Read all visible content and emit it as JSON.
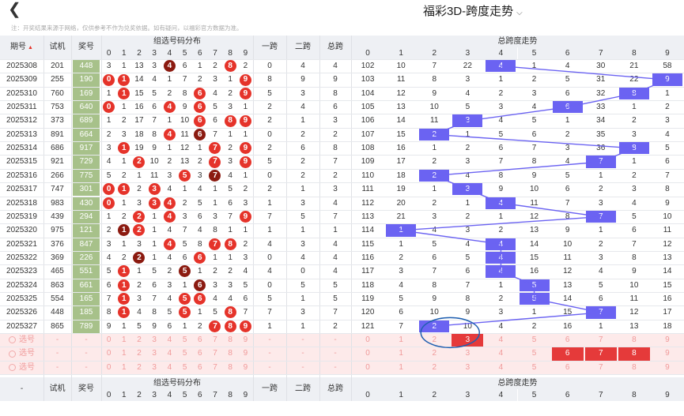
{
  "header": {
    "back_icon": "back-chevron-icon",
    "title": "福彩3D-跨度走势",
    "title_dropdown_icon": "chevron-down-icon"
  },
  "notice": "注：开奖结果来源于网络，仅供参考不作为兑奖依据。如有疑问，以福彩官方数据为准。",
  "columns": {
    "period": "期号",
    "trial": "试机",
    "draw": "奖号",
    "group_dist": "组选号码分布",
    "span1": "一跨",
    "span2": "二跨",
    "total_span": "总跨",
    "trend": "总跨度走势",
    "sort_icon": "sort-icon",
    "digits": [
      "0",
      "1",
      "2",
      "3",
      "4",
      "5",
      "6",
      "7",
      "8",
      "9"
    ]
  },
  "rows": [
    {
      "period": "2025308",
      "trial": "201",
      "draw": "448",
      "dist": [
        "3",
        "1",
        "13",
        "3",
        "4",
        "6",
        "1",
        "2",
        "8",
        "2"
      ],
      "balls": [
        {
          "i": 4,
          "c": "d"
        },
        {
          "i": 8,
          "c": "r"
        }
      ],
      "span1": "0",
      "span2": "4",
      "total": "4",
      "trend": [
        "102",
        "10",
        "7",
        "22",
        "4",
        "1",
        "4",
        "30",
        "21",
        "58"
      ],
      "hit": 4
    },
    {
      "period": "2025309",
      "trial": "255",
      "draw": "190",
      "dist": [
        "0",
        "1",
        "14",
        "4",
        "1",
        "7",
        "2",
        "3",
        "1",
        "9"
      ],
      "balls": [
        {
          "i": 0,
          "c": "r"
        },
        {
          "i": 1,
          "c": "r"
        },
        {
          "i": 9,
          "c": "r"
        }
      ],
      "span1": "8",
      "span2": "9",
      "total": "9",
      "trend": [
        "103",
        "11",
        "8",
        "3",
        "1",
        "2",
        "5",
        "31",
        "22",
        "9"
      ],
      "hit": 9
    },
    {
      "period": "2025310",
      "trial": "760",
      "draw": "169",
      "dist": [
        "1",
        "1",
        "15",
        "5",
        "2",
        "8",
        "6",
        "4",
        "2",
        "9"
      ],
      "balls": [
        {
          "i": 1,
          "c": "r"
        },
        {
          "i": 6,
          "c": "r"
        },
        {
          "i": 9,
          "c": "r"
        }
      ],
      "span1": "5",
      "span2": "3",
      "total": "8",
      "trend": [
        "104",
        "12",
        "9",
        "4",
        "2",
        "3",
        "6",
        "32",
        "8",
        "1"
      ],
      "hit": 8
    },
    {
      "period": "2025311",
      "trial": "753",
      "draw": "640",
      "dist": [
        "0",
        "1",
        "16",
        "6",
        "4",
        "9",
        "6",
        "5",
        "3",
        "1"
      ],
      "balls": [
        {
          "i": 0,
          "c": "r"
        },
        {
          "i": 4,
          "c": "r"
        },
        {
          "i": 6,
          "c": "r"
        }
      ],
      "span1": "2",
      "span2": "4",
      "total": "6",
      "trend": [
        "105",
        "13",
        "10",
        "5",
        "3",
        "4",
        "6",
        "33",
        "1",
        "2"
      ],
      "hit": 6
    },
    {
      "period": "2025312",
      "trial": "373",
      "draw": "689",
      "dist": [
        "1",
        "2",
        "17",
        "7",
        "1",
        "10",
        "6",
        "6",
        "8",
        "9"
      ],
      "balls": [
        {
          "i": 6,
          "c": "r"
        },
        {
          "i": 8,
          "c": "r"
        },
        {
          "i": 9,
          "c": "r"
        }
      ],
      "span1": "2",
      "span2": "1",
      "total": "3",
      "trend": [
        "106",
        "14",
        "11",
        "3",
        "4",
        "5",
        "1",
        "34",
        "2",
        "3"
      ],
      "hit": 3
    },
    {
      "period": "2025313",
      "trial": "891",
      "draw": "664",
      "dist": [
        "2",
        "3",
        "18",
        "8",
        "4",
        "11",
        "6",
        "7",
        "1",
        "1"
      ],
      "balls": [
        {
          "i": 4,
          "c": "r"
        },
        {
          "i": 6,
          "c": "d"
        }
      ],
      "span1": "0",
      "span2": "2",
      "total": "2",
      "trend": [
        "107",
        "15",
        "2",
        "1",
        "5",
        "6",
        "2",
        "35",
        "3",
        "4"
      ],
      "hit": 2
    },
    {
      "period": "2025314",
      "trial": "686",
      "draw": "917",
      "dist": [
        "3",
        "1",
        "19",
        "9",
        "1",
        "12",
        "1",
        "7",
        "2",
        "9"
      ],
      "balls": [
        {
          "i": 1,
          "c": "r"
        },
        {
          "i": 7,
          "c": "r"
        },
        {
          "i": 9,
          "c": "r"
        }
      ],
      "span1": "2",
      "span2": "6",
      "total": "8",
      "trend": [
        "108",
        "16",
        "1",
        "2",
        "6",
        "7",
        "3",
        "36",
        "8",
        "5"
      ],
      "hit": 8
    },
    {
      "period": "2025315",
      "trial": "921",
      "draw": "729",
      "dist": [
        "4",
        "1",
        "2",
        "10",
        "2",
        "13",
        "2",
        "7",
        "3",
        "9"
      ],
      "balls": [
        {
          "i": 2,
          "c": "r"
        },
        {
          "i": 7,
          "c": "r"
        },
        {
          "i": 9,
          "c": "r"
        }
      ],
      "span1": "5",
      "span2": "2",
      "total": "7",
      "trend": [
        "109",
        "17",
        "2",
        "3",
        "7",
        "8",
        "4",
        "7",
        "1",
        "6"
      ],
      "hit": 7
    },
    {
      "period": "2025316",
      "trial": "266",
      "draw": "775",
      "dist": [
        "5",
        "2",
        "1",
        "11",
        "3",
        "5",
        "3",
        "7",
        "4",
        "1"
      ],
      "balls": [
        {
          "i": 5,
          "c": "r"
        },
        {
          "i": 7,
          "c": "d"
        }
      ],
      "span1": "0",
      "span2": "2",
      "total": "2",
      "trend": [
        "110",
        "18",
        "2",
        "4",
        "8",
        "9",
        "5",
        "1",
        "2",
        "7"
      ],
      "hit": 2
    },
    {
      "period": "2025317",
      "trial": "747",
      "draw": "301",
      "dist": [
        "0",
        "1",
        "2",
        "3",
        "4",
        "1",
        "4",
        "1",
        "5",
        "2"
      ],
      "balls": [
        {
          "i": 0,
          "c": "r"
        },
        {
          "i": 1,
          "c": "r"
        },
        {
          "i": 3,
          "c": "r"
        }
      ],
      "span1": "2",
      "span2": "1",
      "total": "3",
      "trend": [
        "111",
        "19",
        "1",
        "3",
        "9",
        "10",
        "6",
        "2",
        "3",
        "8"
      ],
      "hit": 3
    },
    {
      "period": "2025318",
      "trial": "983",
      "draw": "430",
      "dist": [
        "0",
        "1",
        "3",
        "3",
        "4",
        "2",
        "5",
        "1",
        "6",
        "3"
      ],
      "balls": [
        {
          "i": 0,
          "c": "r"
        },
        {
          "i": 3,
          "c": "r"
        },
        {
          "i": 4,
          "c": "r"
        }
      ],
      "span1": "1",
      "span2": "3",
      "total": "4",
      "trend": [
        "112",
        "20",
        "2",
        "1",
        "4",
        "11",
        "7",
        "3",
        "4",
        "9"
      ],
      "hit": 4
    },
    {
      "period": "2025319",
      "trial": "439",
      "draw": "294",
      "dist": [
        "1",
        "2",
        "2",
        "1",
        "4",
        "3",
        "6",
        "3",
        "7",
        "9"
      ],
      "balls": [
        {
          "i": 2,
          "c": "r"
        },
        {
          "i": 4,
          "c": "r"
        },
        {
          "i": 9,
          "c": "r"
        }
      ],
      "span1": "7",
      "span2": "5",
      "total": "7",
      "trend": [
        "113",
        "21",
        "3",
        "2",
        "1",
        "12",
        "8",
        "7",
        "5",
        "10"
      ],
      "hit": 7
    },
    {
      "period": "2025320",
      "trial": "975",
      "draw": "121",
      "dist": [
        "2",
        "1",
        "2",
        "1",
        "4",
        "7",
        "4",
        "8",
        "1",
        "1"
      ],
      "balls": [
        {
          "i": 1,
          "c": "d"
        },
        {
          "i": 2,
          "c": "r"
        }
      ],
      "span1": "1",
      "span2": "1",
      "total": "1",
      "trend": [
        "114",
        "1",
        "4",
        "3",
        "2",
        "13",
        "9",
        "1",
        "6",
        "11"
      ],
      "hit": 1
    },
    {
      "period": "2025321",
      "trial": "376",
      "draw": "847",
      "dist": [
        "3",
        "1",
        "3",
        "1",
        "4",
        "5",
        "8",
        "7",
        "8",
        "2"
      ],
      "balls": [
        {
          "i": 4,
          "c": "r"
        },
        {
          "i": 7,
          "c": "r"
        },
        {
          "i": 8,
          "c": "r"
        }
      ],
      "span1": "4",
      "span2": "3",
      "total": "4",
      "trend": [
        "115",
        "1",
        "5",
        "4",
        "4",
        "14",
        "10",
        "2",
        "7",
        "12"
      ],
      "hit": 4
    },
    {
      "period": "2025322",
      "trial": "369",
      "draw": "226",
      "dist": [
        "4",
        "2",
        "2",
        "1",
        "4",
        "6",
        "6",
        "1",
        "1",
        "3"
      ],
      "balls": [
        {
          "i": 2,
          "c": "d"
        },
        {
          "i": 6,
          "c": "r"
        }
      ],
      "span1": "0",
      "span2": "4",
      "total": "4",
      "trend": [
        "116",
        "2",
        "6",
        "5",
        "4",
        "15",
        "11",
        "3",
        "8",
        "13"
      ],
      "hit": 4
    },
    {
      "period": "2025323",
      "trial": "465",
      "draw": "551",
      "dist": [
        "5",
        "1",
        "1",
        "5",
        "2",
        "5",
        "1",
        "2",
        "2",
        "4"
      ],
      "balls": [
        {
          "i": 1,
          "c": "r"
        },
        {
          "i": 5,
          "c": "d"
        }
      ],
      "span1": "4",
      "span2": "0",
      "total": "4",
      "trend": [
        "117",
        "3",
        "7",
        "6",
        "4",
        "16",
        "12",
        "4",
        "9",
        "14"
      ],
      "hit": 4
    },
    {
      "period": "2025324",
      "trial": "863",
      "draw": "661",
      "dist": [
        "6",
        "1",
        "2",
        "6",
        "3",
        "1",
        "6",
        "3",
        "3",
        "5"
      ],
      "balls": [
        {
          "i": 1,
          "c": "r"
        },
        {
          "i": 6,
          "c": "d"
        }
      ],
      "span1": "0",
      "span2": "5",
      "total": "5",
      "trend": [
        "118",
        "4",
        "8",
        "7",
        "1",
        "5",
        "13",
        "5",
        "10",
        "15"
      ],
      "hit": 5
    },
    {
      "period": "2025325",
      "trial": "554",
      "draw": "165",
      "dist": [
        "7",
        "1",
        "3",
        "7",
        "4",
        "5",
        "6",
        "4",
        "4",
        "6"
      ],
      "balls": [
        {
          "i": 1,
          "c": "r"
        },
        {
          "i": 5,
          "c": "r"
        },
        {
          "i": 6,
          "c": "r"
        }
      ],
      "span1": "5",
      "span2": "1",
      "total": "5",
      "trend": [
        "119",
        "5",
        "9",
        "8",
        "2",
        "5",
        "14",
        "6",
        "11",
        "16"
      ],
      "hit": 5
    },
    {
      "period": "2025326",
      "trial": "448",
      "draw": "185",
      "dist": [
        "8",
        "1",
        "4",
        "8",
        "5",
        "5",
        "1",
        "5",
        "8",
        "7"
      ],
      "balls": [
        {
          "i": 1,
          "c": "r"
        },
        {
          "i": 5,
          "c": "r"
        },
        {
          "i": 8,
          "c": "r"
        }
      ],
      "span1": "7",
      "span2": "3",
      "total": "7",
      "trend": [
        "120",
        "6",
        "10",
        "9",
        "3",
        "1",
        "15",
        "7",
        "12",
        "17"
      ],
      "hit": 7
    },
    {
      "period": "2025327",
      "trial": "865",
      "draw": "789",
      "dist": [
        "9",
        "1",
        "5",
        "9",
        "6",
        "1",
        "2",
        "7",
        "8",
        "9"
      ],
      "balls": [
        {
          "i": 7,
          "c": "r"
        },
        {
          "i": 8,
          "c": "r"
        },
        {
          "i": 9,
          "c": "r"
        }
      ],
      "span1": "1",
      "span2": "1",
      "total": "2",
      "trend": [
        "121",
        "7",
        "2",
        "10",
        "4",
        "2",
        "16",
        "1",
        "13",
        "18"
      ],
      "hit": 2
    }
  ],
  "pick_rows": [
    {
      "label": "选号",
      "trend_red": [
        3
      ]
    },
    {
      "label": "选号",
      "trend_red": [
        6,
        7,
        8
      ]
    },
    {
      "label": "选号",
      "trend_red": []
    }
  ],
  "pick_dash": "-",
  "colors": {
    "ball_red": "#e5332a",
    "ball_dark": "#8b1a10",
    "shot_green": "#a7c18a",
    "span_purple": "#6b63f2",
    "pred_red": "#e53a3a",
    "circle": "#1f5fb0"
  },
  "footer": {
    "period": "-",
    "trial": "试机",
    "draw": "奖号",
    "group_dist": "组选号码分布",
    "span1": "一跨",
    "span2": "二跨",
    "total_span": "总跨",
    "trend": "总跨度走势"
  }
}
